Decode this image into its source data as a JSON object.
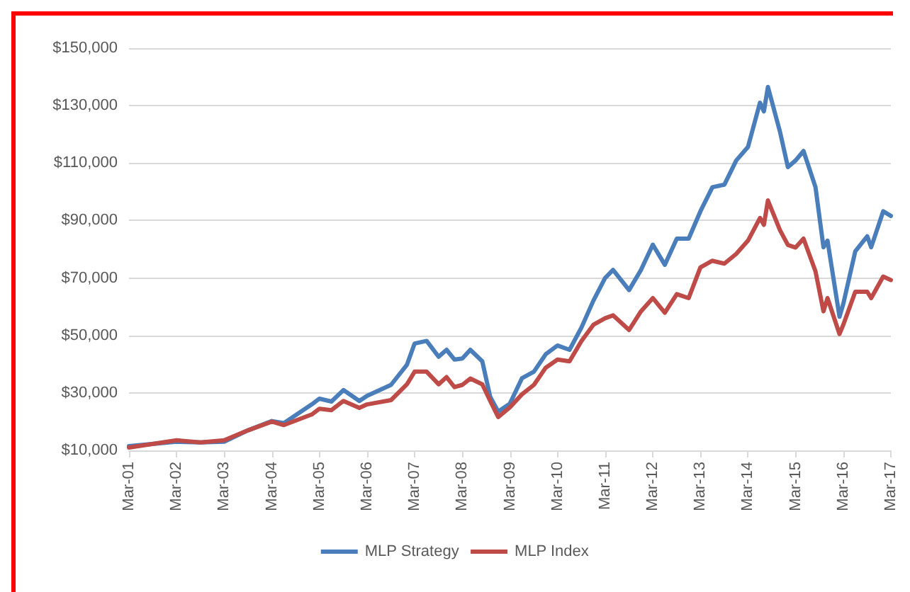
{
  "chart_data": {
    "type": "line",
    "x": [
      "2001-03",
      "2002-03",
      "2002-09",
      "2003-03",
      "2003-09",
      "2004-03",
      "2004-06",
      "2005-01",
      "2005-03",
      "2005-06",
      "2005-09",
      "2006-01",
      "2006-03",
      "2006-09",
      "2007-01",
      "2007-03",
      "2007-06",
      "2007-09",
      "2007-11",
      "2008-01",
      "2008-03",
      "2008-05",
      "2008-08",
      "2008-10",
      "2008-12",
      "2009-03",
      "2009-06",
      "2009-09",
      "2009-12",
      "2010-03",
      "2010-06",
      "2010-09",
      "2010-12",
      "2011-03",
      "2011-05",
      "2011-09",
      "2011-12",
      "2012-03",
      "2012-06",
      "2012-09",
      "2012-12",
      "2013-03",
      "2013-06",
      "2013-09",
      "2013-12",
      "2014-03",
      "2014-06",
      "2014-07",
      "2014-08",
      "2014-11",
      "2015-01",
      "2015-03",
      "2015-05",
      "2015-08",
      "2015-10",
      "2015-11",
      "2016-02",
      "2016-03",
      "2016-06",
      "2016-09",
      "2016-10",
      "2017-01",
      "2017-03"
    ],
    "series": [
      {
        "name": "MLP Strategy",
        "color": "#4a7ebb",
        "values": [
          11500,
          13000,
          12800,
          13000,
          17000,
          20200,
          19500,
          26000,
          28000,
          27000,
          31000,
          27200,
          29000,
          32800,
          39800,
          47200,
          48100,
          42600,
          45000,
          41600,
          42000,
          45000,
          41000,
          28600,
          23500,
          26300,
          35100,
          37400,
          43500,
          46500,
          45000,
          52800,
          62100,
          70000,
          72800,
          65800,
          72800,
          81600,
          74600,
          83700,
          83700,
          93200,
          101600,
          102500,
          110900,
          115600,
          131000,
          128000,
          136500,
          121000,
          108600,
          110900,
          114200,
          101600,
          80700,
          83000,
          56500,
          61000,
          79300,
          84500,
          80700,
          93200,
          91600
        ]
      },
      {
        "name": "MLP Index",
        "color": "#be4b48",
        "values": [
          11000,
          13500,
          12800,
          13500,
          17000,
          20000,
          18800,
          22500,
          24500,
          24000,
          27200,
          24800,
          26000,
          27500,
          33000,
          37400,
          37400,
          33000,
          35500,
          32000,
          32800,
          35000,
          33000,
          27200,
          21600,
          25000,
          29500,
          32800,
          38800,
          41600,
          41000,
          48100,
          53700,
          56000,
          57000,
          51900,
          58400,
          63000,
          57900,
          64400,
          63000,
          73700,
          76000,
          75000,
          78400,
          83000,
          90900,
          88500,
          97000,
          86700,
          81500,
          80600,
          83700,
          72300,
          58400,
          63000,
          50500,
          53700,
          65200,
          65200,
          63000,
          70500,
          69300
        ]
      }
    ],
    "xlim": [
      "2001-03",
      "2017-03"
    ],
    "xticks": [
      {
        "value": "2001-03",
        "label": "Mar-01"
      },
      {
        "value": "2002-03",
        "label": "Mar-02"
      },
      {
        "value": "2003-03",
        "label": "Mar-03"
      },
      {
        "value": "2004-03",
        "label": "Mar-04"
      },
      {
        "value": "2005-03",
        "label": "Mar-05"
      },
      {
        "value": "2006-03",
        "label": "Mar-06"
      },
      {
        "value": "2007-03",
        "label": "Mar-07"
      },
      {
        "value": "2008-03",
        "label": "Mar-08"
      },
      {
        "value": "2009-03",
        "label": "Mar-09"
      },
      {
        "value": "2010-03",
        "label": "Mar-10"
      },
      {
        "value": "2011-03",
        "label": "Mar-11"
      },
      {
        "value": "2012-03",
        "label": "Mar-12"
      },
      {
        "value": "2013-03",
        "label": "Mar-13"
      },
      {
        "value": "2014-03",
        "label": "Mar-14"
      },
      {
        "value": "2015-03",
        "label": "Mar-15"
      },
      {
        "value": "2016-03",
        "label": "Mar-16"
      },
      {
        "value": "2017-03",
        "label": "Mar-17"
      }
    ],
    "ylim": [
      10000,
      150000
    ],
    "yticks": [
      {
        "value": 10000,
        "label": "$10,000"
      },
      {
        "value": 30000,
        "label": "$30,000"
      },
      {
        "value": 50000,
        "label": "$50,000"
      },
      {
        "value": 70000,
        "label": "$70,000"
      },
      {
        "value": 90000,
        "label": "$90,000"
      },
      {
        "value": 110000,
        "label": "$110,000"
      },
      {
        "value": 130000,
        "label": "$130,000"
      },
      {
        "value": 150000,
        "label": "$150,000"
      }
    ],
    "grid": "y",
    "legend": "bottom",
    "marker": "none",
    "line_style": "solid"
  }
}
